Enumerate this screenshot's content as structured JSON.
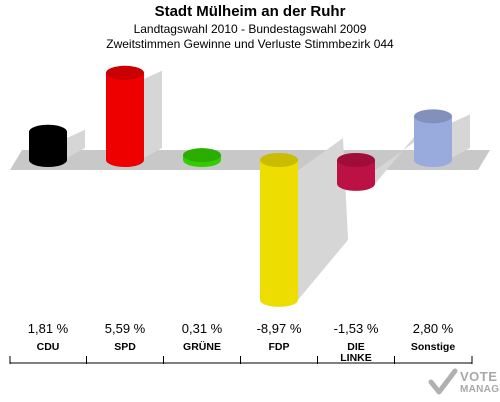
{
  "title": "Stadt Mülheim an der Ruhr",
  "subtitle1": "Landtagswahl 2010 - Bundestagswahl 2009",
  "subtitle2": "Zweitstimmen Gewinne und Verluste Stimmbezirk 044",
  "logo": {
    "line1": "VOTE",
    "line2": "MANAGER"
  },
  "chart_data": {
    "type": "bar",
    "categories": [
      "CDU",
      "SPD",
      "GRÜNE",
      "FDP",
      "DIE LINKE",
      "Sonstige"
    ],
    "values": [
      1.81,
      5.59,
      0.31,
      -8.97,
      -1.53,
      2.8
    ],
    "value_labels": [
      "1,81 %",
      "5,59 %",
      "0,31 %",
      "-8,97 %",
      "-1,53 %",
      "2,80 %"
    ],
    "colors": [
      "#000000",
      "#ee0000",
      "#33cc00",
      "#eedd00",
      "#bb1144",
      "#99aadd"
    ],
    "grid": false,
    "legend": "none"
  }
}
